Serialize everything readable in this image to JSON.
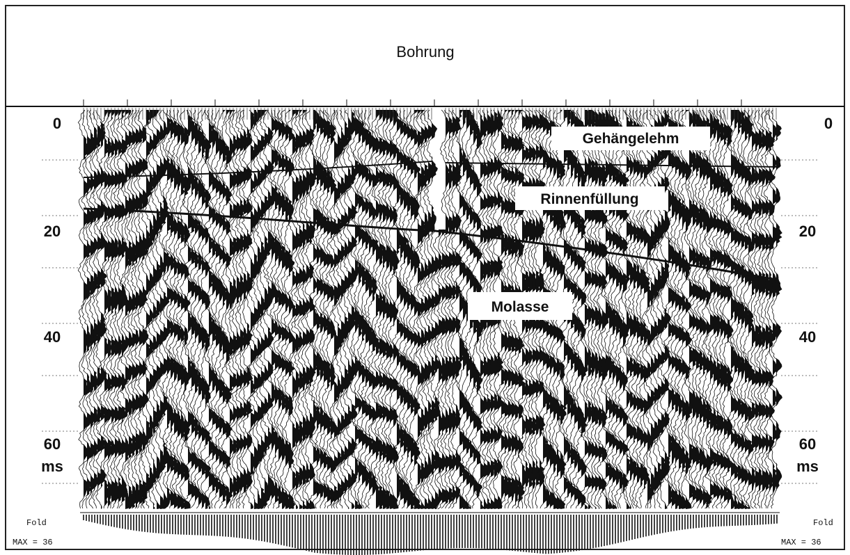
{
  "header": {
    "title": "Bohrung"
  },
  "time_axis": {
    "ticks": [
      0,
      20,
      40,
      60
    ],
    "unit": "ms"
  },
  "labels": [
    "Gehängelehm",
    "Rinnenfüllung",
    "Molasse"
  ],
  "fold": {
    "label": "Fold",
    "max": "MAX = 36"
  }
}
